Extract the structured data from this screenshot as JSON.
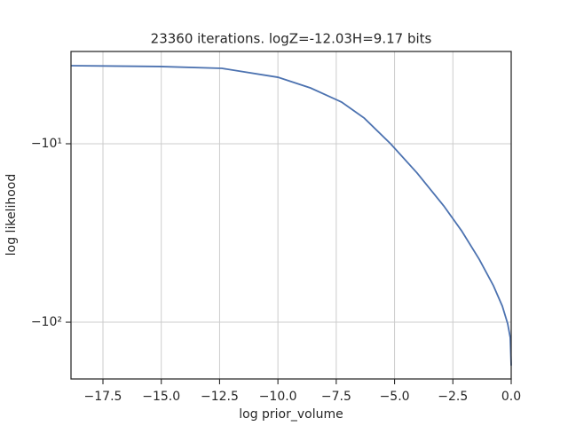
{
  "chart_data": {
    "type": "line",
    "title": "23360 iterations. logZ=-12.03H=9.17 bits",
    "x_label": "log prior_volume",
    "y_label": "log likelihood",
    "yscale": "neglog",
    "grid": true,
    "xlim": [
      -18.87,
      0
    ],
    "ylim": [
      -208,
      -3.04
    ],
    "xticks": [
      {
        "value": -17.5,
        "label": "−17.5"
      },
      {
        "value": -15,
        "label": "−15.0"
      },
      {
        "value": -12.5,
        "label": "−12.5"
      },
      {
        "value": -10,
        "label": "−10.0"
      },
      {
        "value": -7.5,
        "label": "−7.5"
      },
      {
        "value": -5,
        "label": "−5.0"
      },
      {
        "value": -2.5,
        "label": "−2.5"
      },
      {
        "value": 0,
        "label": "0.0"
      }
    ],
    "yticks": [
      {
        "value": -10,
        "label": "−10¹"
      },
      {
        "value": -100,
        "label": "−10²"
      }
    ],
    "x": [
      -18.87,
      -15.07,
      -12.4,
      -10.0,
      -8.6,
      -7.27,
      -6.3,
      -5.17,
      -4.03,
      -2.89,
      -2.13,
      -1.37,
      -0.76,
      -0.38,
      -0.15,
      -0.04,
      0
    ],
    "series": [
      {
        "name": "log likelihood",
        "color": "#4c72b0",
        "values": [
          -3.65,
          -3.69,
          -3.78,
          -4.24,
          -4.87,
          -5.84,
          -7.18,
          -10,
          -14.6,
          -22.3,
          -30.7,
          -44.4,
          -62.5,
          -81.3,
          -102,
          -122,
          -175
        ]
      }
    ]
  }
}
